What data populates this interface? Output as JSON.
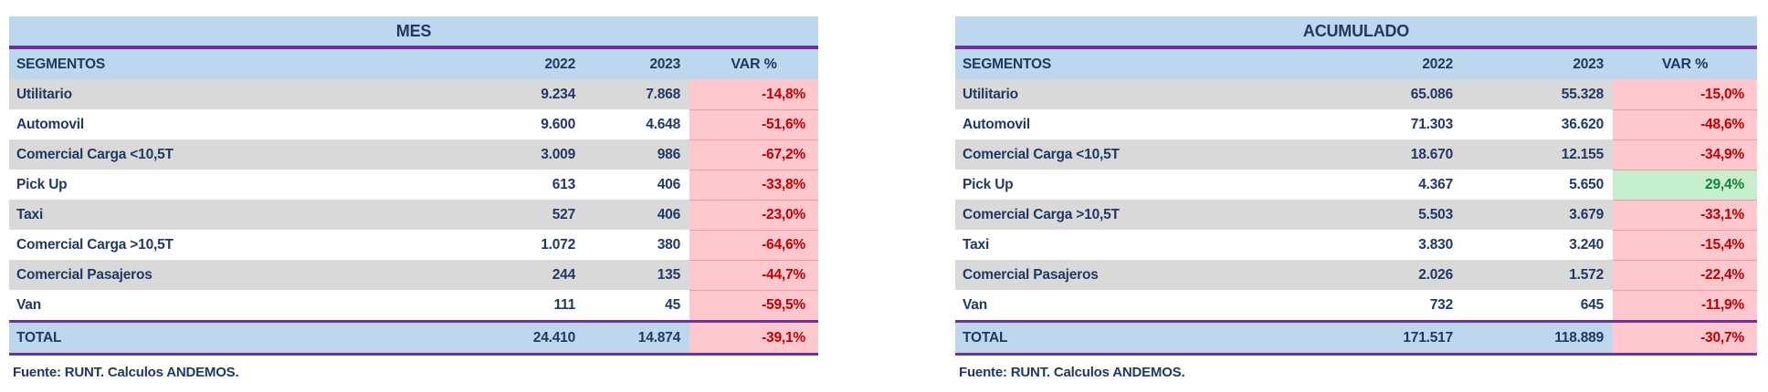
{
  "palette": {
    "header_blue": "#BDD7EE",
    "row_gray": "#D9D9D9",
    "row_white": "#FFFFFF",
    "negative_bg": "#FFC7CE",
    "negative_text": "#C00000",
    "positive_bg": "#C6EFCE",
    "positive_text": "#168039",
    "accent_purple": "#7030A0",
    "text_navy": "#1F3864"
  },
  "tables": [
    {
      "title": "MES",
      "columns": [
        "SEGMENTOS",
        "2022",
        "2023",
        "VAR %"
      ],
      "rows": [
        {
          "segment": "Utilitario",
          "y2022": "9.234",
          "y2023": "7.868",
          "var": "-14,8%",
          "state": "neg"
        },
        {
          "segment": "Automovil",
          "y2022": "9.600",
          "y2023": "4.648",
          "var": "-51,6%",
          "state": "neg"
        },
        {
          "segment": "Comercial Carga <10,5T",
          "y2022": "3.009",
          "y2023": "986",
          "var": "-67,2%",
          "state": "neg"
        },
        {
          "segment": "Pick Up",
          "y2022": "613",
          "y2023": "406",
          "var": "-33,8%",
          "state": "neg"
        },
        {
          "segment": "Taxi",
          "y2022": "527",
          "y2023": "406",
          "var": "-23,0%",
          "state": "neg"
        },
        {
          "segment": "Comercial Carga >10,5T",
          "y2022": "1.072",
          "y2023": "380",
          "var": "-64,6%",
          "state": "neg"
        },
        {
          "segment": "Comercial Pasajeros",
          "y2022": "244",
          "y2023": "135",
          "var": "-44,7%",
          "state": "neg"
        },
        {
          "segment": "Van",
          "y2022": "111",
          "y2023": "45",
          "var": "-59,5%",
          "state": "neg"
        }
      ],
      "total": {
        "segment": "TOTAL",
        "y2022": "24.410",
        "y2023": "14.874",
        "var": "-39,1%",
        "state": "neg"
      },
      "source": "Fuente: RUNT. Calculos ANDEMOS."
    },
    {
      "title": "ACUMULADO",
      "columns": [
        "SEGMENTOS",
        "2022",
        "2023",
        "VAR %"
      ],
      "rows": [
        {
          "segment": "Utilitario",
          "y2022": "65.086",
          "y2023": "55.328",
          "var": "-15,0%",
          "state": "neg"
        },
        {
          "segment": "Automovil",
          "y2022": "71.303",
          "y2023": "36.620",
          "var": "-48,6%",
          "state": "neg"
        },
        {
          "segment": "Comercial Carga <10,5T",
          "y2022": "18.670",
          "y2023": "12.155",
          "var": "-34,9%",
          "state": "neg"
        },
        {
          "segment": "Pick Up",
          "y2022": "4.367",
          "y2023": "5.650",
          "var": "29,4%",
          "state": "pos"
        },
        {
          "segment": "Comercial Carga >10,5T",
          "y2022": "5.503",
          "y2023": "3.679",
          "var": "-33,1%",
          "state": "neg"
        },
        {
          "segment": "Taxi",
          "y2022": "3.830",
          "y2023": "3.240",
          "var": "-15,4%",
          "state": "neg"
        },
        {
          "segment": "Comercial Pasajeros",
          "y2022": "2.026",
          "y2023": "1.572",
          "var": "-22,4%",
          "state": "neg"
        },
        {
          "segment": "Van",
          "y2022": "732",
          "y2023": "645",
          "var": "-11,9%",
          "state": "neg"
        }
      ],
      "total": {
        "segment": "TOTAL",
        "y2022": "171.517",
        "y2023": "118.889",
        "var": "-30,7%",
        "state": "neg"
      },
      "source": "Fuente: RUNT. Calculos ANDEMOS."
    }
  ],
  "chart_data": [
    {
      "type": "table",
      "title": "MES",
      "columns": [
        "SEGMENTOS",
        "2022",
        "2023",
        "VAR %"
      ],
      "rows": [
        [
          "Utilitario",
          9234,
          7868,
          -14.8
        ],
        [
          "Automovil",
          9600,
          4648,
          -51.6
        ],
        [
          "Comercial Carga <10,5T",
          3009,
          986,
          -67.2
        ],
        [
          "Pick Up",
          613,
          406,
          -33.8
        ],
        [
          "Taxi",
          527,
          406,
          -23.0
        ],
        [
          "Comercial Carga >10,5T",
          1072,
          380,
          -64.6
        ],
        [
          "Comercial Pasajeros",
          244,
          135,
          -44.7
        ],
        [
          "Van",
          111,
          45,
          -59.5
        ]
      ],
      "total": [
        "TOTAL",
        24410,
        14874,
        -39.1
      ],
      "source": "Fuente: RUNT. Calculos ANDEMOS."
    },
    {
      "type": "table",
      "title": "ACUMULADO",
      "columns": [
        "SEGMENTOS",
        "2022",
        "2023",
        "VAR %"
      ],
      "rows": [
        [
          "Utilitario",
          65086,
          55328,
          -15.0
        ],
        [
          "Automovil",
          71303,
          36620,
          -48.6
        ],
        [
          "Comercial Carga <10,5T",
          18670,
          12155,
          -34.9
        ],
        [
          "Pick Up",
          4367,
          5650,
          29.4
        ],
        [
          "Comercial Carga >10,5T",
          5503,
          3679,
          -33.1
        ],
        [
          "Taxi",
          3830,
          3240,
          -15.4
        ],
        [
          "Comercial Pasajeros",
          2026,
          1572,
          -22.4
        ],
        [
          "Van",
          732,
          645,
          -11.9
        ]
      ],
      "total": [
        "TOTAL",
        171517,
        118889,
        -30.7
      ],
      "source": "Fuente: RUNT. Calculos ANDEMOS."
    }
  ]
}
